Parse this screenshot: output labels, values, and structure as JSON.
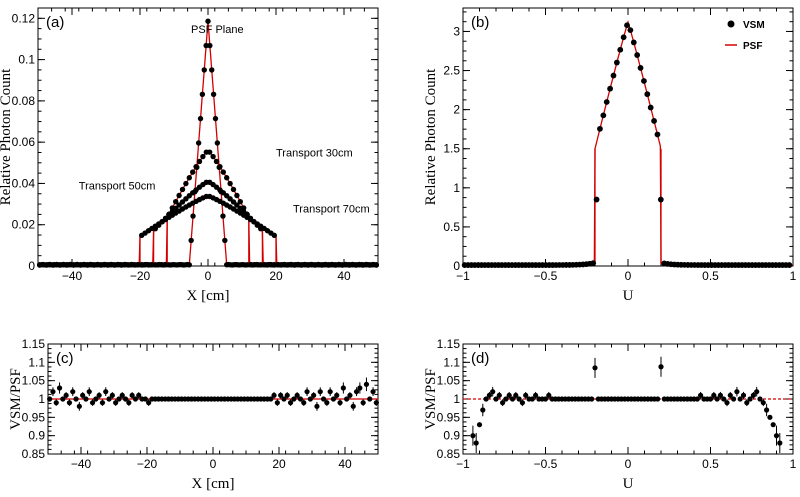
{
  "chart_data": [
    {
      "panel": "a",
      "type": "line",
      "panel_label": "(a)",
      "xlabel": "X [cm]",
      "ylabel": "Relative Photon Count",
      "xlim": [
        -50,
        50
      ],
      "ylim": [
        0,
        0.125
      ],
      "xticks": [
        -40,
        -20,
        0,
        20,
        40
      ],
      "yticks": [
        0,
        0.02,
        0.04,
        0.06,
        0.08,
        0.1,
        0.12
      ],
      "ytick_labels": [
        "0",
        "0.02",
        "0.04",
        "0.06",
        "0.08",
        "0.1",
        "0.12"
      ],
      "series": [
        {
          "name": "PSF Plane",
          "center": 0,
          "peak": 0.118,
          "half_width": 5.5
        },
        {
          "name": "Transport 30cm",
          "center": 0,
          "peak": 0.056,
          "half_width": 12
        },
        {
          "name": "Transport 50cm",
          "center": 0,
          "peak": 0.041,
          "half_width": 16
        },
        {
          "name": "Transport 70cm",
          "center": 0,
          "peak": 0.034,
          "half_width": 20
        }
      ],
      "annotations": [
        {
          "text": "PSF Plane",
          "x": -5,
          "y": 0.113
        },
        {
          "text": "Transport 30cm",
          "x": 20,
          "y": 0.053
        },
        {
          "text": "Transport 50cm",
          "x": -38,
          "y": 0.037
        },
        {
          "text": "Transport 70cm",
          "x": 25,
          "y": 0.026
        }
      ]
    },
    {
      "panel": "b",
      "type": "line",
      "panel_label": "(b)",
      "xlabel": "U",
      "ylabel": "Relative Photon Count",
      "xlim": [
        -1,
        1
      ],
      "ylim": [
        0,
        3.3
      ],
      "xticks": [
        -1,
        -0.5,
        0,
        0.5,
        1
      ],
      "xtick_labels": [
        "−1",
        "−0.5",
        "0",
        "0.5",
        "1"
      ],
      "yticks": [
        0,
        0.5,
        1,
        1.5,
        2,
        2.5,
        3
      ],
      "ytick_labels": [
        "0",
        "0.5",
        "1",
        "1.5",
        "2",
        "2.5",
        "3"
      ],
      "series": [
        {
          "name": "VSM",
          "marker": "circle",
          "center": 0,
          "peak": 3.12,
          "edge": 0.2,
          "edge_value": 1.5
        },
        {
          "name": "PSF",
          "marker": "line",
          "color": "#cc0000"
        }
      ],
      "legend": [
        {
          "label": "VSM",
          "style": "marker"
        },
        {
          "label": "PSF",
          "style": "line"
        }
      ]
    },
    {
      "panel": "c",
      "type": "scatter",
      "panel_label": "(c)",
      "xlabel": "X [cm]",
      "ylabel": "VSM/PSF",
      "xlim": [
        -50,
        50
      ],
      "ylim": [
        0.85,
        1.15
      ],
      "xticks": [
        -40,
        -20,
        0,
        20,
        40
      ],
      "yticks": [
        0.85,
        0.9,
        0.95,
        1,
        1.05,
        1.1,
        1.15
      ],
      "ytick_labels": [
        "0.85",
        "0.9",
        "0.95",
        "1",
        "1.05",
        "1.1",
        "1.15"
      ],
      "reference_line": 1.0,
      "ratio_points": [
        [
          -49.5,
          1.0
        ],
        [
          -48.5,
          1.02
        ],
        [
          -47.5,
          0.99
        ],
        [
          -46.5,
          1.03
        ],
        [
          -45.5,
          1.0
        ],
        [
          -44.5,
          1.01
        ],
        [
          -43.5,
          0.99
        ],
        [
          -42.5,
          1.02
        ],
        [
          -41.5,
          1.0
        ],
        [
          -40.5,
          0.98
        ],
        [
          -39.5,
          1.01
        ],
        [
          -38.5,
          1.0
        ],
        [
          -37.5,
          1.02
        ],
        [
          -36.5,
          0.99
        ],
        [
          -35.5,
          1.0
        ],
        [
          -34.5,
          1.01
        ],
        [
          -33.5,
          0.99
        ],
        [
          -32.5,
          1.02
        ],
        [
          -31.5,
          1.0
        ],
        [
          -30.5,
          1.01
        ],
        [
          -29.5,
          0.99
        ],
        [
          -28.5,
          1.0
        ],
        [
          -27.5,
          1.01
        ],
        [
          -26.5,
          1.0
        ],
        [
          -25.5,
          0.99
        ],
        [
          -24.5,
          1.01
        ],
        [
          -23.5,
          1.0
        ],
        [
          -22.5,
          1.01
        ],
        [
          -21.5,
          1.0
        ],
        [
          -20.5,
          1.0
        ],
        [
          -19.5,
          0.99
        ],
        [
          -18.5,
          1.0
        ],
        [
          -17.5,
          1.0
        ],
        [
          -16.5,
          1.0
        ],
        [
          -15.5,
          1.0
        ],
        [
          -14.5,
          1.0
        ],
        [
          -13.5,
          1.0
        ],
        [
          -12.5,
          1.0
        ],
        [
          -11.5,
          1.0
        ],
        [
          -10.5,
          1.0
        ],
        [
          -9.5,
          1.0
        ],
        [
          -8.5,
          1.0
        ],
        [
          -7.5,
          1.0
        ],
        [
          -6.5,
          1.0
        ],
        [
          -5.5,
          1.0
        ],
        [
          -4.5,
          1.0
        ],
        [
          -3.5,
          1.0
        ],
        [
          -2.5,
          1.0
        ],
        [
          -1.5,
          1.0
        ],
        [
          -0.5,
          1.0
        ],
        [
          0.5,
          1.0
        ],
        [
          1.5,
          1.0
        ],
        [
          2.5,
          1.0
        ],
        [
          3.5,
          1.0
        ],
        [
          4.5,
          1.0
        ],
        [
          5.5,
          1.0
        ],
        [
          6.5,
          1.0
        ],
        [
          7.5,
          1.0
        ],
        [
          8.5,
          1.0
        ],
        [
          9.5,
          1.0
        ],
        [
          10.5,
          1.0
        ],
        [
          11.5,
          1.0
        ],
        [
          12.5,
          1.0
        ],
        [
          13.5,
          1.0
        ],
        [
          14.5,
          1.0
        ],
        [
          15.5,
          1.0
        ],
        [
          16.5,
          1.0
        ],
        [
          17.5,
          1.0
        ],
        [
          18.5,
          1.01
        ],
        [
          19.5,
          0.99
        ],
        [
          20.5,
          1.01
        ],
        [
          21.5,
          1.0
        ],
        [
          22.5,
          1.01
        ],
        [
          23.5,
          0.99
        ],
        [
          24.5,
          1.0
        ],
        [
          25.5,
          1.01
        ],
        [
          26.5,
          1.0
        ],
        [
          27.5,
          0.99
        ],
        [
          28.5,
          1.02
        ],
        [
          29.5,
          1.0
        ],
        [
          30.5,
          1.01
        ],
        [
          31.5,
          0.98
        ],
        [
          32.5,
          1.02
        ],
        [
          33.5,
          1.0
        ],
        [
          34.5,
          0.99
        ],
        [
          35.5,
          1.02
        ],
        [
          36.5,
          1.0
        ],
        [
          37.5,
          1.01
        ],
        [
          38.5,
          0.99
        ],
        [
          39.5,
          1.03
        ],
        [
          40.5,
          1.0
        ],
        [
          41.5,
          1.01
        ],
        [
          42.5,
          0.98
        ],
        [
          43.5,
          1.02
        ],
        [
          44.5,
          1.03
        ],
        [
          45.5,
          0.99
        ],
        [
          46.5,
          1.04
        ],
        [
          47.5,
          1.0
        ],
        [
          48.5,
          1.02
        ],
        [
          49.5,
          0.99
        ]
      ]
    },
    {
      "panel": "d",
      "type": "scatter",
      "panel_label": "(d)",
      "xlabel": "U",
      "ylabel": "VSM/PSF",
      "xlim": [
        -1,
        1
      ],
      "ylim": [
        0.85,
        1.15
      ],
      "xticks": [
        -1,
        -0.5,
        0,
        0.5,
        1
      ],
      "xtick_labels": [
        "−1",
        "−0.5",
        "0",
        "0.5",
        "1"
      ],
      "yticks": [
        0.85,
        0.9,
        0.95,
        1,
        1.05,
        1.1,
        1.15
      ],
      "ytick_labels": [
        "0.85",
        "0.9",
        "0.95",
        "1",
        "1.05",
        "1.1",
        "1.15"
      ],
      "reference_line": 1.0,
      "ratio_points": [
        [
          -0.94,
          0.9
        ],
        [
          -0.92,
          0.88
        ],
        [
          -0.9,
          0.93
        ],
        [
          -0.88,
          0.97
        ],
        [
          -0.86,
          1.0
        ],
        [
          -0.84,
          1.01
        ],
        [
          -0.82,
          1.02
        ],
        [
          -0.8,
          1.0
        ],
        [
          -0.78,
          1.01
        ],
        [
          -0.76,
          0.99
        ],
        [
          -0.74,
          1.0
        ],
        [
          -0.72,
          1.01
        ],
        [
          -0.7,
          1.0
        ],
        [
          -0.68,
          1.01
        ],
        [
          -0.66,
          1.0
        ],
        [
          -0.64,
          0.99
        ],
        [
          -0.62,
          1.01
        ],
        [
          -0.6,
          1.0
        ],
        [
          -0.58,
          1.0
        ],
        [
          -0.56,
          1.01
        ],
        [
          -0.54,
          1.0
        ],
        [
          -0.52,
          1.0
        ],
        [
          -0.5,
          1.0
        ],
        [
          -0.48,
          1.01
        ],
        [
          -0.46,
          1.0
        ],
        [
          -0.44,
          1.0
        ],
        [
          -0.42,
          1.0
        ],
        [
          -0.4,
          1.0
        ],
        [
          -0.38,
          1.0
        ],
        [
          -0.36,
          1.0
        ],
        [
          -0.34,
          1.0
        ],
        [
          -0.32,
          1.0
        ],
        [
          -0.3,
          1.0
        ],
        [
          -0.28,
          1.0
        ],
        [
          -0.26,
          1.0
        ],
        [
          -0.24,
          1.0
        ],
        [
          -0.22,
          1.0
        ],
        [
          -0.2,
          1.085
        ],
        [
          -0.18,
          1.0
        ],
        [
          -0.16,
          1.0
        ],
        [
          -0.14,
          1.0
        ],
        [
          -0.12,
          1.0
        ],
        [
          -0.1,
          1.0
        ],
        [
          -0.08,
          1.0
        ],
        [
          -0.06,
          1.0
        ],
        [
          -0.04,
          1.0
        ],
        [
          -0.02,
          1.0
        ],
        [
          0.0,
          1.0
        ],
        [
          0.02,
          1.0
        ],
        [
          0.04,
          1.0
        ],
        [
          0.06,
          1.0
        ],
        [
          0.08,
          1.0
        ],
        [
          0.1,
          1.0
        ],
        [
          0.12,
          1.0
        ],
        [
          0.14,
          1.0
        ],
        [
          0.16,
          1.0
        ],
        [
          0.18,
          1.0
        ],
        [
          0.2,
          1.088
        ],
        [
          0.22,
          1.0
        ],
        [
          0.24,
          1.0
        ],
        [
          0.26,
          1.0
        ],
        [
          0.28,
          1.0
        ],
        [
          0.3,
          1.0
        ],
        [
          0.32,
          1.0
        ],
        [
          0.34,
          1.0
        ],
        [
          0.36,
          1.0
        ],
        [
          0.38,
          1.0
        ],
        [
          0.4,
          1.0
        ],
        [
          0.42,
          1.0
        ],
        [
          0.44,
          1.01
        ],
        [
          0.46,
          1.0
        ],
        [
          0.48,
          1.0
        ],
        [
          0.5,
          1.0
        ],
        [
          0.52,
          1.01
        ],
        [
          0.54,
          1.0
        ],
        [
          0.56,
          1.01
        ],
        [
          0.58,
          1.0
        ],
        [
          0.6,
          0.99
        ],
        [
          0.62,
          1.01
        ],
        [
          0.64,
          1.0
        ],
        [
          0.66,
          1.02
        ],
        [
          0.68,
          1.0
        ],
        [
          0.7,
          1.01
        ],
        [
          0.72,
          0.99
        ],
        [
          0.74,
          1.0
        ],
        [
          0.76,
          1.01
        ],
        [
          0.78,
          1.02
        ],
        [
          0.8,
          1.0
        ],
        [
          0.82,
          0.99
        ],
        [
          0.84,
          0.97
        ],
        [
          0.86,
          0.95
        ],
        [
          0.88,
          0.93
        ],
        [
          0.9,
          0.9
        ],
        [
          0.92,
          0.88
        ]
      ]
    }
  ]
}
